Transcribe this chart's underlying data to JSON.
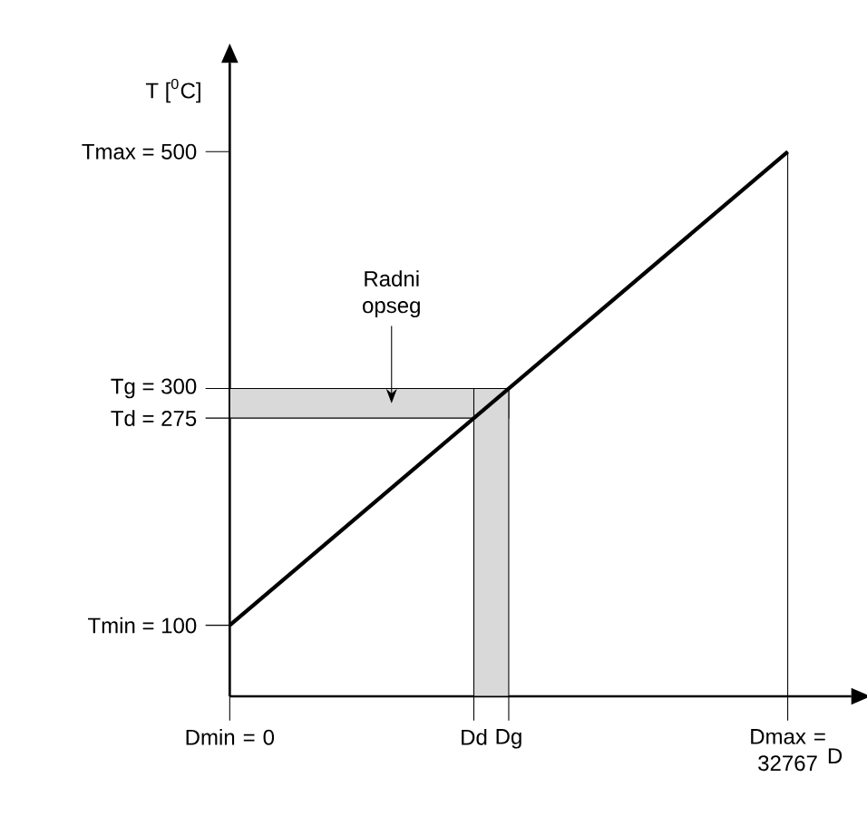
{
  "chart_data": {
    "type": "line",
    "xlabel": "D",
    "ylabel": "T [$^{0}$C]",
    "x": [
      0,
      32767
    ],
    "series": [
      {
        "color": "#000000",
        "values": [
          100,
          500
        ]
      }
    ],
    "xlim": [
      0,
      36500
    ],
    "ylim": [
      40,
      575
    ],
    "xticks": [
      {
        "value": 0,
        "label": "Dmin = 0"
      },
      {
        "value": 14335,
        "label": "Dd"
      },
      {
        "value": 16383.5,
        "label": "Dg"
      },
      {
        "value": 32767,
        "label": "Dmax = 32767"
      }
    ],
    "yticks": [
      {
        "value": 100,
        "label": "Tmin = 100"
      },
      {
        "value": 275,
        "label": "Td = 275"
      },
      {
        "value": 300,
        "label": "Tg = 300"
      },
      {
        "value": 500,
        "label": "Tmax = 500"
      }
    ],
    "bands": [
      {
        "axis": "y",
        "from": 275,
        "to": 300,
        "color": "#d9d9d9"
      },
      {
        "axis": "x",
        "from": 14335,
        "to": 16383.5,
        "color": "#d9d9d9"
      }
    ],
    "ref_lines": [
      {
        "axis": "x",
        "value": 32767,
        "color": "#000000"
      }
    ],
    "annotations": [
      "Radni opseg"
    ],
    "grid": false,
    "marker": "none",
    "line_style": "solid"
  }
}
